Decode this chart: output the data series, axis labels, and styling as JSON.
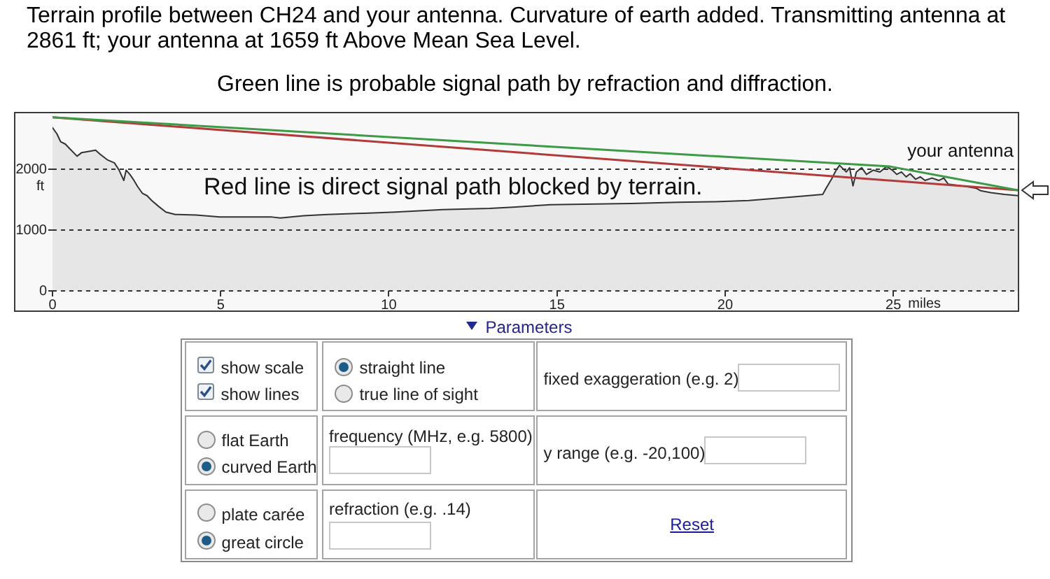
{
  "chart_data": [
    {
      "type": "area",
      "title": "Terrain profile between CH24 and your antenna. Curvature of earth added. Transmitting antenna at 2861 ft; your antenna at 1659 ft Above Mean Sea Level.",
      "subtitle": "Green line is probable signal path by refraction and diffraction.",
      "xlabel": "miles",
      "ylabel": "ft",
      "annotations": [
        "Red line is direct signal path blocked by terrain.",
        {
          "text": "your antenna",
          "x": 28.7,
          "y": 1659
        }
      ],
      "series": [
        {
          "type": "area",
          "color": "#333333",
          "x": [
            0,
            0.13,
            0.24,
            0.38,
            0.52,
            0.73,
            0.87,
            1.08,
            1.28,
            1.42,
            1.63,
            1.84,
            1.98,
            2.12,
            2.19,
            2.3,
            2.4,
            2.53,
            2.67,
            2.81,
            2.95,
            3.16,
            3.37,
            3.65,
            4.27,
            4.97,
            5.66,
            6.49,
            6.77,
            7.47,
            8.16,
            9.27,
            10.2,
            11.6,
            13.0,
            13.7,
            14.8,
            15.8,
            17.2,
            18.6,
            19.7,
            20.7,
            22.05,
            22.9,
            23.0,
            23.16,
            23.3,
            23.4,
            23.6,
            23.7,
            23.8,
            23.9,
            24.06,
            24.2,
            24.4,
            24.6,
            24.8,
            24.97,
            25.1,
            25.24,
            25.38,
            25.5,
            25.66,
            25.8,
            25.94,
            26.15,
            26.35,
            26.5,
            26.63,
            27.05,
            27.47,
            27.6,
            27.9,
            28.3,
            28.7
          ],
          "values": [
            2690,
            2590,
            2460,
            2420,
            2340,
            2220,
            2280,
            2300,
            2320,
            2250,
            2160,
            2110,
            1990,
            1820,
            1990,
            1920,
            1840,
            1720,
            1610,
            1570,
            1490,
            1390,
            1300,
            1260,
            1250,
            1220,
            1220,
            1220,
            1200,
            1240,
            1260,
            1280,
            1300,
            1340,
            1360,
            1380,
            1420,
            1430,
            1440,
            1460,
            1470,
            1490,
            1550,
            1590,
            1690,
            1840,
            1990,
            2070,
            1960,
            2030,
            1730,
            1960,
            2030,
            1920,
            1990,
            1960,
            2050,
            1990,
            1920,
            1960,
            1880,
            1930,
            1840,
            1880,
            1820,
            1860,
            1820,
            1860,
            1760,
            1730,
            1690,
            1650,
            1620,
            1590,
            1570
          ]
        },
        {
          "type": "line",
          "color": "#b23a3a",
          "x": [
            0,
            28.7
          ],
          "values": [
            2861,
            1659
          ]
        },
        {
          "type": "line",
          "color": "#3d9a46",
          "x": [
            0,
            24.9,
            28.7
          ],
          "values": [
            2861,
            2050,
            1659
          ]
        }
      ],
      "xlim": [
        0,
        28.7
      ],
      "ylim": [
        0,
        2950
      ],
      "xticks": [
        0,
        5,
        10,
        15,
        20,
        25
      ],
      "yticks": [
        0,
        1000,
        2000
      ],
      "grid": "y",
      "marker": "none"
    },
    {
      "type": "other",
      "title": "Parameters",
      "annotations": [
        "show scale",
        "show lines",
        "straight line",
        "true line of sight",
        "fixed exaggeration (e.g. 2)",
        "flat Earth",
        "curved Earth",
        "frequency (MHz, e.g. 5800)",
        "y range (e.g. -20,100)",
        "plate carée",
        "great circle",
        "refraction (e.g. .14)",
        "Reset"
      ]
    }
  ]
}
